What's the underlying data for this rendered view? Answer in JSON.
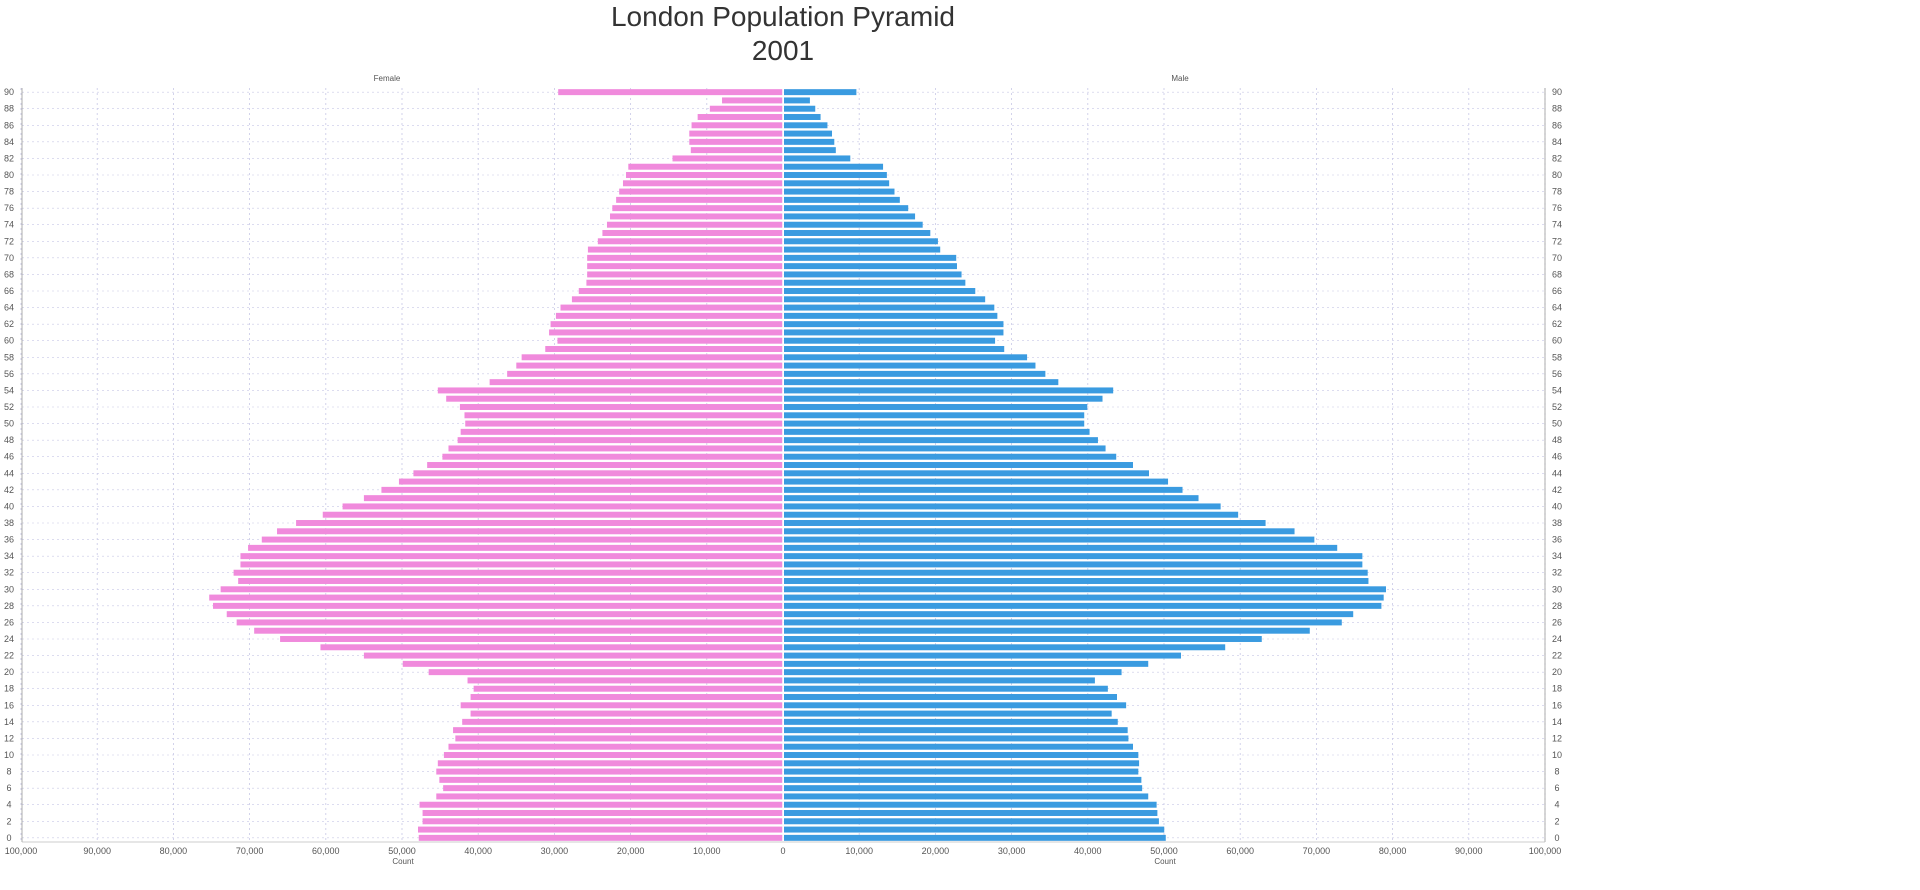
{
  "chart_data": {
    "type": "bar",
    "orientation": "horizontal-pyramid",
    "title": "London Population Pyramid",
    "subtitle": "2001",
    "left_label": "Female",
    "right_label": "Male",
    "xlabel_left": "Count",
    "xlabel_right": "Count",
    "xlim": [
      0,
      100000
    ],
    "x_ticks": [
      "0",
      "10,000",
      "20,000",
      "30,000",
      "40,000",
      "50,000",
      "60,000",
      "70,000",
      "80,000",
      "90,000",
      "100,000"
    ],
    "y_ticks": [
      "0",
      "2",
      "4",
      "6",
      "8",
      "10",
      "12",
      "14",
      "16",
      "18",
      "20",
      "22",
      "24",
      "26",
      "28",
      "30",
      "32",
      "34",
      "36",
      "38",
      "40",
      "42",
      "44",
      "46",
      "48",
      "50",
      "52",
      "54",
      "56",
      "58",
      "60",
      "62",
      "64",
      "66",
      "68",
      "70",
      "72",
      "74",
      "76",
      "78",
      "80",
      "82",
      "84",
      "86",
      "88",
      "90"
    ],
    "grid": true,
    "colors": {
      "female": "#f08adc",
      "male": "#3a9be0",
      "grid": "#c8c8e6"
    },
    "ages": [
      0,
      1,
      2,
      3,
      4,
      5,
      6,
      7,
      8,
      9,
      10,
      11,
      12,
      13,
      14,
      15,
      16,
      17,
      18,
      19,
      20,
      21,
      22,
      23,
      24,
      25,
      26,
      27,
      28,
      29,
      30,
      31,
      32,
      33,
      34,
      35,
      36,
      37,
      38,
      39,
      40,
      41,
      42,
      43,
      44,
      45,
      46,
      47,
      48,
      49,
      50,
      51,
      52,
      53,
      54,
      55,
      56,
      57,
      58,
      59,
      60,
      61,
      62,
      63,
      64,
      65,
      66,
      67,
      68,
      69,
      70,
      71,
      72,
      73,
      74,
      75,
      76,
      77,
      78,
      79,
      80,
      81,
      82,
      83,
      84,
      85,
      86,
      87,
      88,
      89,
      90
    ],
    "series": [
      {
        "name": "Female",
        "values": [
          47800,
          47900,
          47300,
          47300,
          47700,
          45500,
          44600,
          45100,
          45500,
          45300,
          44500,
          43900,
          43000,
          43300,
          42100,
          41000,
          42300,
          41000,
          40600,
          41400,
          46500,
          49900,
          55000,
          60700,
          66000,
          69400,
          71700,
          73000,
          74800,
          75300,
          73800,
          71500,
          72100,
          71200,
          71200,
          70200,
          68400,
          66400,
          63900,
          60400,
          57800,
          55000,
          52700,
          50400,
          48500,
          46700,
          44700,
          43900,
          42700,
          42300,
          41700,
          41800,
          42400,
          44200,
          45300,
          38500,
          36200,
          35000,
          34300,
          31200,
          29600,
          30700,
          30500,
          29800,
          29200,
          27700,
          26800,
          25800,
          25700,
          25700,
          25700,
          25600,
          24300,
          23700,
          23100,
          22700,
          22400,
          21900,
          21500,
          21000,
          20600,
          20300,
          14500,
          12100,
          12300,
          12300,
          12000,
          11200,
          9600,
          8000,
          29500
        ]
      },
      {
        "name": "Male",
        "values": [
          50100,
          49900,
          49200,
          49000,
          48900,
          47800,
          47000,
          46900,
          46500,
          46600,
          46500,
          45800,
          45200,
          45100,
          43800,
          43000,
          44900,
          43700,
          42500,
          40800,
          44300,
          47800,
          52100,
          57900,
          62700,
          69000,
          73200,
          74700,
          78400,
          78700,
          79000,
          76700,
          76600,
          75900,
          75900,
          72600,
          69600,
          67000,
          63200,
          59600,
          57300,
          54400,
          52300,
          50400,
          47900,
          45800,
          43600,
          42200,
          41200,
          40100,
          39400,
          39400,
          39800,
          41800,
          43200,
          36000,
          34300,
          33000,
          31900,
          28900,
          27700,
          28800,
          28800,
          28000,
          27600,
          26400,
          25100,
          23800,
          23300,
          22700,
          22600,
          20500,
          20200,
          19200,
          18200,
          17200,
          16300,
          15200,
          14500,
          13800,
          13500,
          13000,
          8700,
          6800,
          6600,
          6300,
          5700,
          4800,
          4100,
          3400,
          9500
        ]
      }
    ]
  }
}
